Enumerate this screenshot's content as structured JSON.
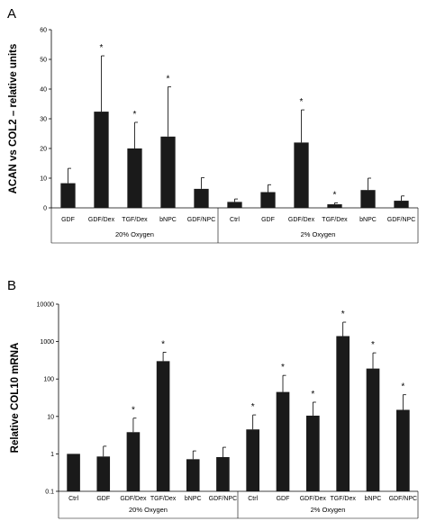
{
  "chart_data": [
    {
      "panel": "A",
      "type": "bar",
      "ylabel": "ACAN vs COL2 – relative units",
      "ylim": [
        0,
        60
      ],
      "yticks": [
        0,
        10,
        20,
        30,
        40,
        50,
        60
      ],
      "groups": [
        {
          "label": "20% Oxygen",
          "categories": [
            "GDF",
            "GDF/Dex",
            "TGF/Dex",
            "bNPC",
            "GDF/NPC"
          ],
          "values": [
            8.3,
            32.4,
            20.0,
            24.0,
            6.4
          ],
          "errors": [
            5.0,
            18.8,
            8.8,
            16.8,
            3.8
          ],
          "significant": [
            false,
            true,
            true,
            true,
            false
          ]
        },
        {
          "label": "2% Oxygen",
          "categories": [
            "Ctrl",
            "GDF",
            "GDF/Dex",
            "TGF/Dex",
            "bNPC",
            "GDF/NPC"
          ],
          "values": [
            2.0,
            5.3,
            22.0,
            1.2,
            6.0,
            2.4
          ],
          "errors": [
            1.0,
            2.5,
            11.0,
            0.5,
            4.0,
            1.6
          ],
          "significant": [
            false,
            false,
            true,
            true,
            false,
            false
          ]
        }
      ]
    },
    {
      "panel": "B",
      "type": "bar",
      "ylabel": "Relative COL10 mRNA",
      "yscale": "log",
      "ylim": [
        0.1,
        10000
      ],
      "yticks": [
        "0.1",
        "1",
        "10",
        "100",
        "1000",
        "10000"
      ],
      "groups": [
        {
          "label": "20% Oxygen",
          "categories": [
            "Ctrl",
            "GDF",
            "GDF/Dex",
            "TGF/Dex",
            "bNPC",
            "GDF/NPC"
          ],
          "values": [
            1.0,
            0.85,
            3.8,
            300,
            0.72,
            0.82
          ],
          "errors_upper": [
            1.0,
            1.6,
            9.0,
            520,
            1.2,
            1.5
          ],
          "significant": [
            false,
            false,
            true,
            true,
            false,
            false
          ]
        },
        {
          "label": "2% Oxygen",
          "categories": [
            "Ctrl",
            "GDF",
            "GDF/Dex",
            "TGF/Dex",
            "bNPC",
            "GDF/NPC"
          ],
          "values": [
            4.5,
            45,
            10.5,
            1400,
            190,
            15
          ],
          "errors_upper": [
            11,
            125,
            24,
            3300,
            500,
            38
          ],
          "significant": [
            true,
            true,
            true,
            true,
            true,
            true
          ]
        }
      ]
    }
  ],
  "significance_marker": "*",
  "bar_color": "#1a1a1a"
}
